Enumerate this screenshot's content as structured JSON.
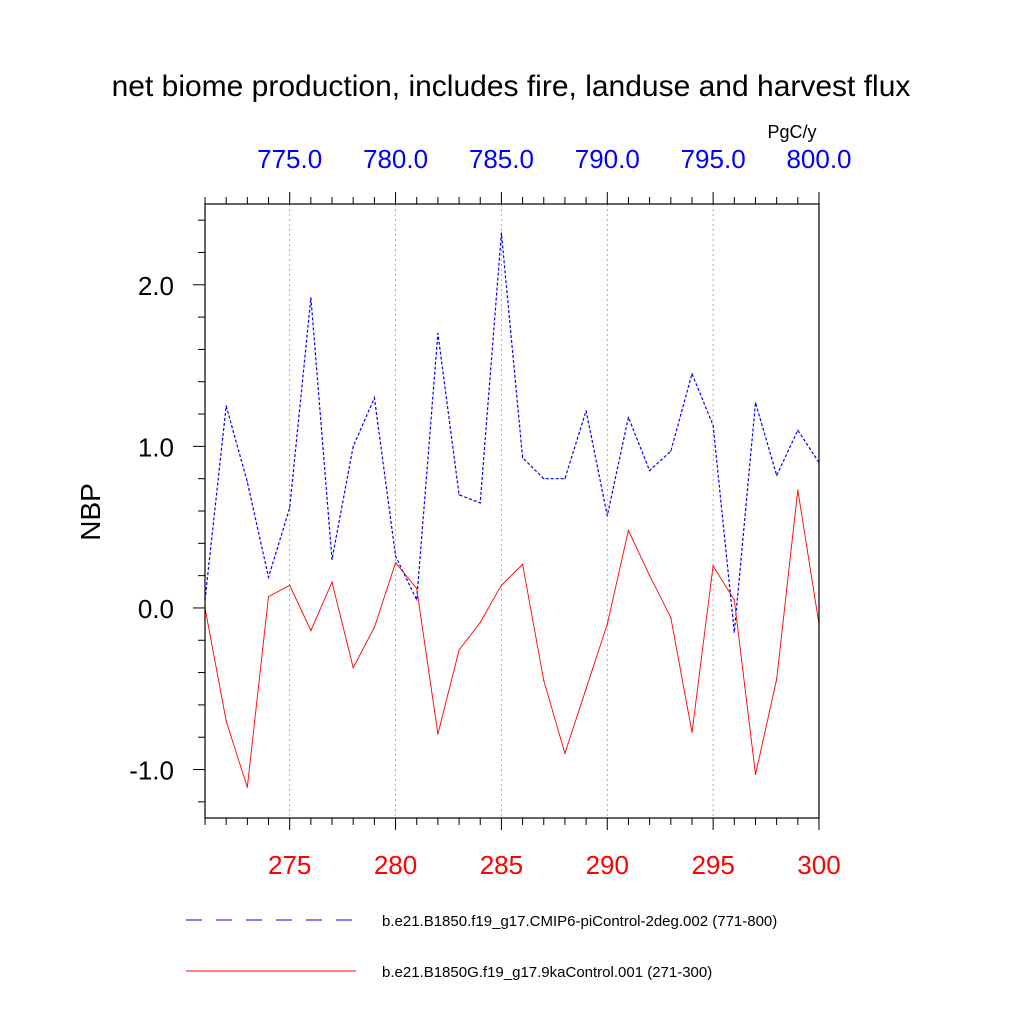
{
  "chart_data": {
    "type": "line",
    "title": "net biome production, includes fire, landuse and harvest flux",
    "ylabel": "NBP",
    "units": "PgC/y",
    "ylim": [
      -1.3,
      2.5
    ],
    "y_ticks": [
      -1.0,
      0.0,
      1.0,
      2.0
    ],
    "y_tick_labels": [
      "-1.0",
      "0.0",
      "1.0",
      "2.0"
    ],
    "bottom_axis": {
      "range": [
        271,
        300
      ],
      "ticks": [
        275,
        280,
        285,
        290,
        295,
        300
      ],
      "tick_labels": [
        "275",
        "280",
        "285",
        "290",
        "295",
        "300"
      ],
      "color": "#ff0000"
    },
    "top_axis": {
      "range": [
        771,
        800
      ],
      "ticks": [
        775,
        780,
        785,
        790,
        795,
        800
      ],
      "tick_labels": [
        "775.0",
        "780.0",
        "785.0",
        "790.0",
        "795.0",
        "800.0"
      ],
      "color": "#0000ff"
    },
    "grid": "vertical dotted at major ticks",
    "legend_position": "bottom",
    "series": [
      {
        "name": "b.e21.B1850.f19_g17.CMIP6-piControl-2deg.002 (771-800)",
        "axis": "top",
        "color": "#0000ff",
        "style": "dashed",
        "x": [
          771,
          772,
          773,
          774,
          775,
          776,
          777,
          778,
          779,
          780,
          781,
          782,
          783,
          784,
          785,
          786,
          787,
          788,
          789,
          790,
          791,
          792,
          793,
          794,
          795,
          796,
          797,
          798,
          799,
          800
        ],
        "values": [
          0.05,
          1.25,
          0.78,
          0.19,
          0.62,
          1.92,
          0.3,
          1.0,
          1.3,
          0.32,
          0.05,
          1.7,
          0.7,
          0.65,
          2.32,
          0.93,
          0.8,
          0.8,
          1.22,
          0.57,
          1.18,
          0.85,
          0.97,
          1.45,
          1.13,
          -0.15,
          1.27,
          0.82,
          1.1,
          0.9
        ]
      },
      {
        "name": "b.e21.B1850G.f19_g17.9kaControl.001 (271-300)",
        "axis": "bottom",
        "color": "#ff0000",
        "style": "solid",
        "x": [
          271,
          272,
          273,
          274,
          275,
          276,
          277,
          278,
          279,
          280,
          281,
          282,
          283,
          284,
          285,
          286,
          287,
          288,
          289,
          290,
          291,
          292,
          293,
          294,
          295,
          296,
          297,
          298,
          299,
          300
        ],
        "values": [
          0.0,
          -0.7,
          -1.11,
          0.07,
          0.14,
          -0.14,
          0.16,
          -0.37,
          -0.12,
          0.28,
          0.12,
          -0.78,
          -0.26,
          -0.09,
          0.14,
          0.27,
          -0.45,
          -0.9,
          -0.5,
          -0.1,
          0.48,
          0.2,
          -0.06,
          -0.77,
          0.26,
          0.05,
          -1.03,
          -0.44,
          0.73,
          -0.1
        ]
      }
    ]
  }
}
